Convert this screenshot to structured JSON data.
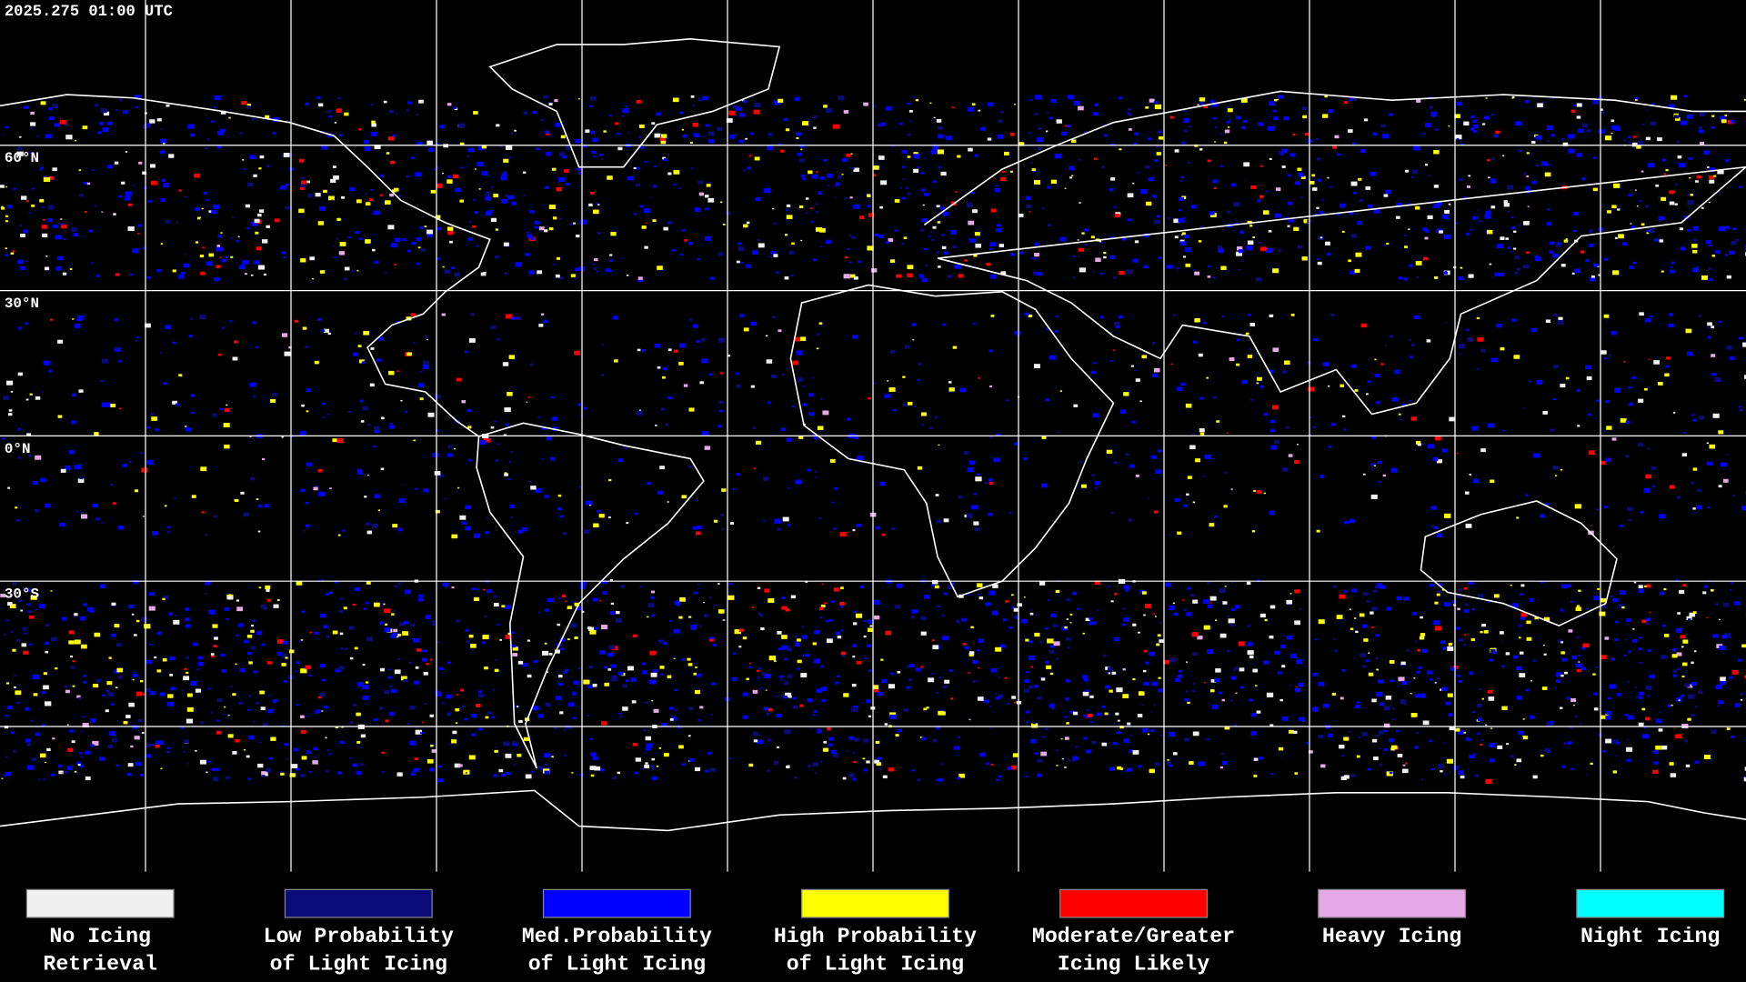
{
  "header": {
    "timestamp": "2025.275 01:00 UTC"
  },
  "map": {
    "latitude_labels": [
      "60°N",
      "30°N",
      "0°N",
      "30°S"
    ]
  },
  "legend": {
    "items": [
      {
        "color": "#f0f0f0",
        "lines": [
          "No Icing",
          "Retrieval"
        ]
      },
      {
        "color": "#0a0a78",
        "lines": [
          "Low Probability",
          "of Light Icing"
        ]
      },
      {
        "color": "#0000ff",
        "lines": [
          "Med.Probability",
          "of Light Icing"
        ]
      },
      {
        "color": "#ffff00",
        "lines": [
          "High Probability",
          "of Light Icing"
        ]
      },
      {
        "color": "#ff0000",
        "lines": [
          "Moderate/Greater",
          "Icing Likely"
        ]
      },
      {
        "color": "#e6a8e6",
        "lines": [
          "Heavy Icing"
        ]
      },
      {
        "color": "#00ffff",
        "lines": [
          "Night Icing"
        ]
      }
    ]
  }
}
